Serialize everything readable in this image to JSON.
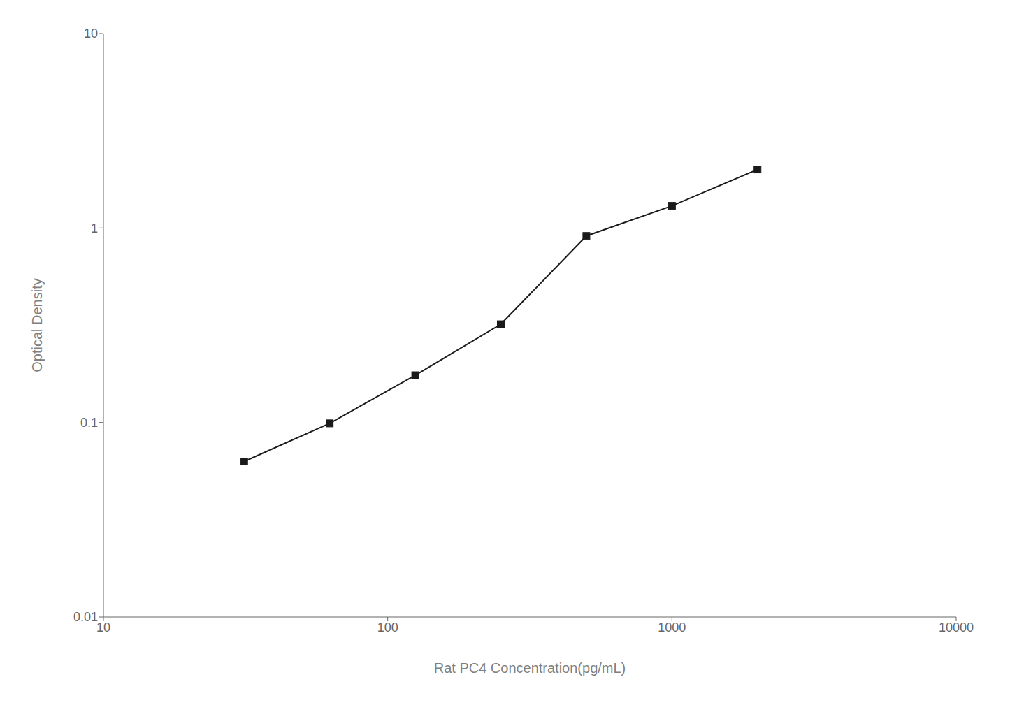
{
  "chart_data": {
    "type": "line",
    "x": [
      31.25,
      62.5,
      125,
      250,
      500,
      1000,
      2000
    ],
    "values": [
      0.063,
      0.099,
      0.175,
      0.32,
      0.91,
      1.3,
      2.0
    ],
    "xlabel": "Rat PC4 Concentration(pg/mL)",
    "ylabel": "Optical Density",
    "xlim": [
      10,
      10000
    ],
    "ylim": [
      0.01,
      10
    ],
    "xticks": [
      10,
      100,
      1000,
      10000
    ],
    "yticks": [
      0.01,
      0.1,
      1,
      10
    ],
    "log": true,
    "grid": false,
    "color": "#1a1a1a",
    "marker": "square"
  }
}
